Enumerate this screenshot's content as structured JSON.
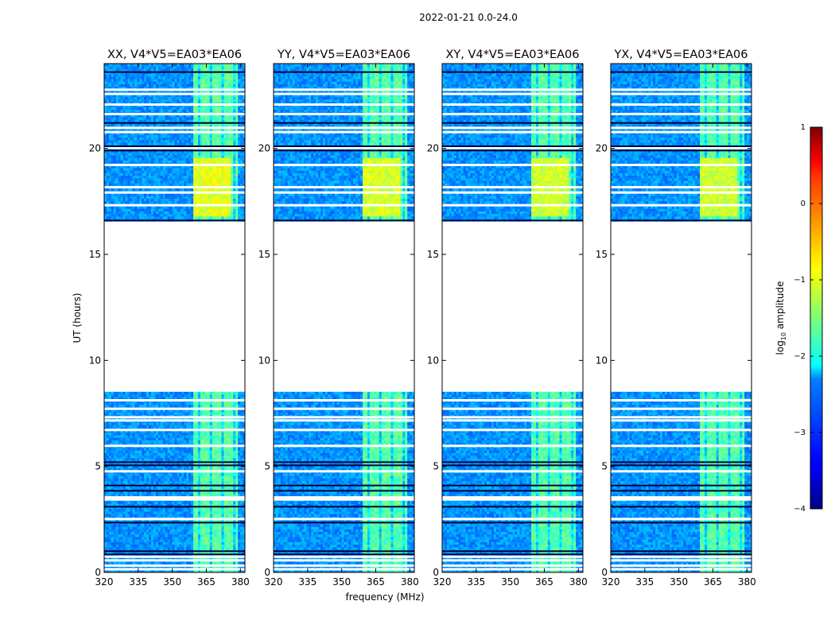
{
  "chart_data": {
    "type": "heatmap",
    "title": "2022-01-21 0.0-24.0",
    "xlabel": "frequency (MHz)",
    "ylabel": "UT (hours)",
    "xlim": [
      320,
      382
    ],
    "ylim": [
      0,
      24
    ],
    "xticks": [
      320,
      335,
      350,
      365,
      380
    ],
    "xtick_labels": [
      "320",
      "335",
      "350",
      "365",
      "380"
    ],
    "yticks": [
      0,
      5,
      10,
      15,
      20
    ],
    "ytick_labels": [
      "0",
      "5",
      "10",
      "15",
      "20"
    ],
    "data_gap_hours": [
      8.5,
      16.5
    ],
    "rfi_band_mhz": [
      359,
      379
    ],
    "panels": [
      {
        "title": "XX, V4*V5=EA03*EA06",
        "band_strength": 1.0
      },
      {
        "title": "YY, V4*V5=EA03*EA06",
        "band_strength": 0.92
      },
      {
        "title": "XY, V4*V5=EA03*EA06",
        "band_strength": 0.88
      },
      {
        "title": "YX, V4*V5=EA03*EA06",
        "band_strength": 0.85
      }
    ],
    "colorbar": {
      "label_main": "log",
      "label_sub": "10",
      "label_rest": " amplitude",
      "range": [
        -4,
        1
      ],
      "ticks": [
        -4,
        -3,
        -2,
        -1,
        0,
        1
      ],
      "tick_labels": [
        "−4",
        "−3",
        "−2",
        "−1",
        "0",
        "1"
      ],
      "cmap": "jet"
    }
  }
}
